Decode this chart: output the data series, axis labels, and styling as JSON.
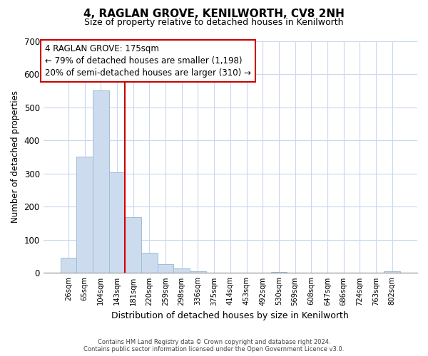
{
  "title": "4, RAGLAN GROVE, KENILWORTH, CV8 2NH",
  "subtitle": "Size of property relative to detached houses in Kenilworth",
  "xlabel": "Distribution of detached houses by size in Kenilworth",
  "ylabel": "Number of detached properties",
  "bar_labels": [
    "26sqm",
    "65sqm",
    "104sqm",
    "143sqm",
    "181sqm",
    "220sqm",
    "259sqm",
    "298sqm",
    "336sqm",
    "375sqm",
    "414sqm",
    "453sqm",
    "492sqm",
    "530sqm",
    "569sqm",
    "608sqm",
    "647sqm",
    "686sqm",
    "724sqm",
    "763sqm",
    "802sqm"
  ],
  "bar_heights": [
    47,
    352,
    551,
    304,
    168,
    61,
    26,
    13,
    5,
    0,
    0,
    0,
    0,
    3,
    0,
    0,
    0,
    0,
    0,
    0,
    5
  ],
  "bar_color": "#ccdcee",
  "bar_edge_color": "#a0bcd8",
  "vline_x_idx": 4,
  "vline_color": "#cc0000",
  "ylim": [
    0,
    700
  ],
  "yticks": [
    0,
    100,
    200,
    300,
    400,
    500,
    600,
    700
  ],
  "annotation_title": "4 RAGLAN GROVE: 175sqm",
  "annotation_line1": "← 79% of detached houses are smaller (1,198)",
  "annotation_line2": "20% of semi-detached houses are larger (310) →",
  "footnote1": "Contains HM Land Registry data © Crown copyright and database right 2024.",
  "footnote2": "Contains public sector information licensed under the Open Government Licence v3.0.",
  "background_color": "#ffffff",
  "grid_color": "#c8d8ee",
  "title_fontsize": 11,
  "subtitle_fontsize": 9
}
